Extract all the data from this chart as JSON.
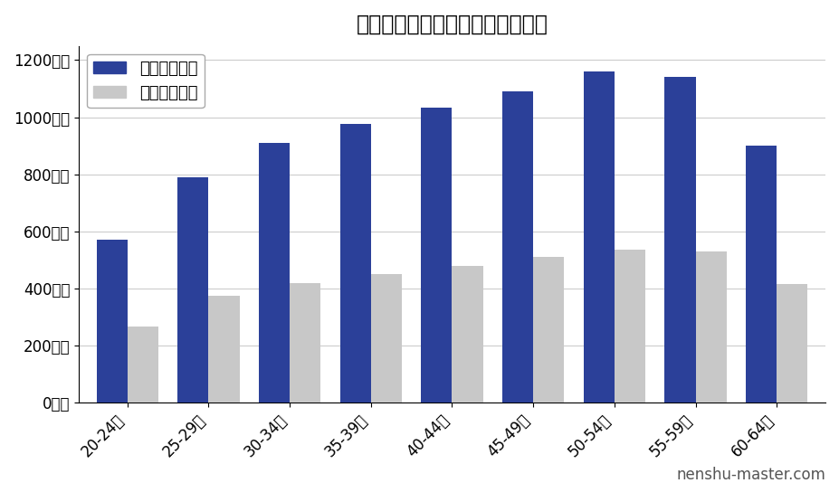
{
  "title": "大和ハウス工業の年齢別平均年収",
  "categories": [
    "20-24歳",
    "25-29歳",
    "30-34歳",
    "35-39歳",
    "40-44歳",
    "45-49歳",
    "50-54歳",
    "55-59歳",
    "60-64歳"
  ],
  "assumed_values": [
    570,
    790,
    910,
    975,
    1035,
    1090,
    1160,
    1140,
    900
  ],
  "national_values": [
    265,
    375,
    420,
    450,
    480,
    510,
    535,
    530,
    415
  ],
  "assumed_color": "#2b4099",
  "national_color": "#c8c8c8",
  "assumed_label": "想定平均年収",
  "national_label": "全国平均年収",
  "ylabel_ticks": [
    "0万円",
    "200万円",
    "400万円",
    "600万円",
    "800万円",
    "1000万円",
    "1200万円"
  ],
  "ytick_values": [
    0,
    200,
    400,
    600,
    800,
    1000,
    1200
  ],
  "ylim": [
    0,
    1250
  ],
  "watermark": "nenshu-master.com",
  "bg_color": "#ffffff",
  "grid_color": "#cccccc",
  "title_fontsize": 17,
  "legend_fontsize": 13,
  "tick_fontsize": 12,
  "watermark_fontsize": 12
}
